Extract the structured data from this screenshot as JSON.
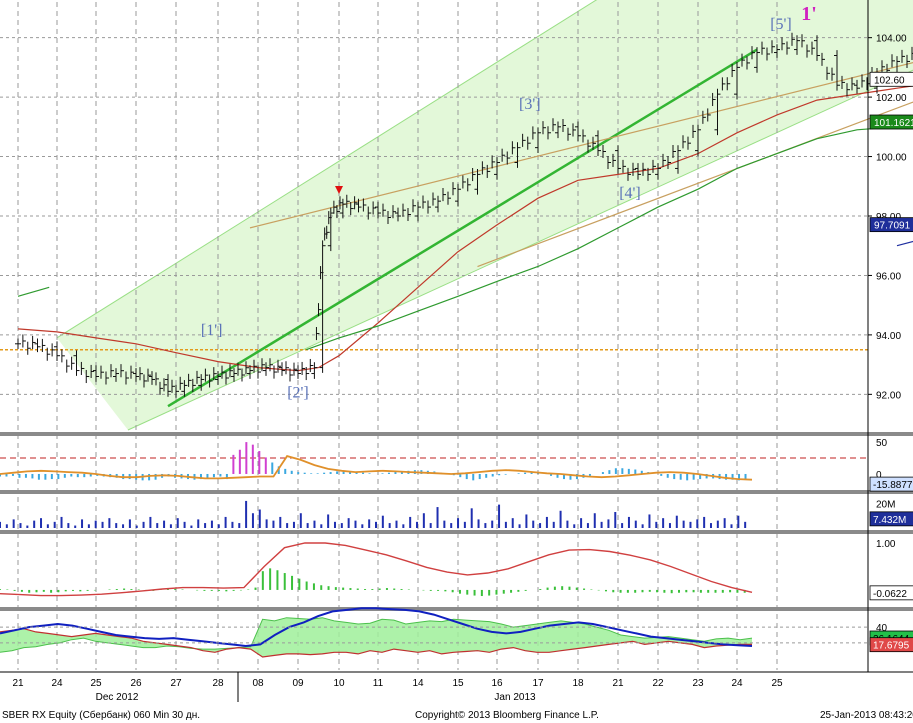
{
  "chart_data": {
    "type": "line",
    "instrument": "SBER RX Equity (Сбербанк) 060 Min 30 дн.",
    "copyright": "Copyright© 2013 Bloomberg Finance L.P.",
    "timestamp": "25-Jan-2013 08:43:20",
    "x_ticks": [
      "21",
      "24",
      "25",
      "26",
      "27",
      "28",
      "08",
      "09",
      "10",
      "11",
      "14",
      "15",
      "16",
      "17",
      "18",
      "21",
      "22",
      "23",
      "24",
      "25"
    ],
    "months": [
      "Dec 2012",
      "Jan 2013"
    ],
    "price_axis": {
      "ylim": [
        90.8,
        105.2
      ],
      "ticks": [
        "92.00",
        "94.00",
        "96.00",
        "98.00",
        "100.00",
        "102.00",
        "104.00"
      ]
    },
    "price_tags": [
      {
        "label": "102.60",
        "value": 102.6,
        "bg": "#ffffff",
        "fg": "#000000"
      },
      {
        "label": "101.1621",
        "value": 101.1621,
        "bg": "#1a8a1a",
        "fg": "#ffffff"
      },
      {
        "label": "97.7091",
        "value": 97.7091,
        "bg": "#1f2f9a",
        "fg": "#ffffff"
      }
    ],
    "support_line": 93.5,
    "annotations": [
      {
        "text": "[1']",
        "x": 4.85,
        "y": 94.0
      },
      {
        "text": "[2']",
        "x": 7.0,
        "y": 91.9
      },
      {
        "text": "[3']",
        "x": 12.8,
        "y": 101.6
      },
      {
        "text": "[4']",
        "x": 15.3,
        "y": 98.6
      },
      {
        "text": "[5']",
        "x": 19.1,
        "y": 104.3
      },
      {
        "text": "1'",
        "x": 19.8,
        "y": 104.6
      }
    ],
    "close_series": [
      {
        "x": 0,
        "y": 93.7
      },
      {
        "x": 0.5,
        "y": 93.6
      },
      {
        "x": 1.0,
        "y": 93.3
      },
      {
        "x": 1.5,
        "y": 92.8
      },
      {
        "x": 2.0,
        "y": 92.6
      },
      {
        "x": 2.5,
        "y": 92.7
      },
      {
        "x": 3.0,
        "y": 92.6
      },
      {
        "x": 3.4,
        "y": 92.5
      },
      {
        "x": 3.8,
        "y": 92.1
      },
      {
        "x": 4.2,
        "y": 92.3
      },
      {
        "x": 4.6,
        "y": 92.5
      },
      {
        "x": 5.0,
        "y": 92.6
      },
      {
        "x": 5.4,
        "y": 92.7
      },
      {
        "x": 5.8,
        "y": 92.8
      },
      {
        "x": 6.2,
        "y": 92.9
      },
      {
        "x": 6.6,
        "y": 92.8
      },
      {
        "x": 7.0,
        "y": 92.7
      },
      {
        "x": 7.4,
        "y": 92.9
      },
      {
        "x": 7.6,
        "y": 97.0
      },
      {
        "x": 7.8,
        "y": 98.1
      },
      {
        "x": 8.1,
        "y": 98.4
      },
      {
        "x": 8.5,
        "y": 98.3
      },
      {
        "x": 9.0,
        "y": 98.1
      },
      {
        "x": 9.5,
        "y": 98.0
      },
      {
        "x": 10.0,
        "y": 98.3
      },
      {
        "x": 10.5,
        "y": 98.5
      },
      {
        "x": 11.0,
        "y": 98.9
      },
      {
        "x": 11.5,
        "y": 99.4
      },
      {
        "x": 12.0,
        "y": 99.8
      },
      {
        "x": 12.5,
        "y": 100.3
      },
      {
        "x": 13.0,
        "y": 100.8
      },
      {
        "x": 13.5,
        "y": 101.0
      },
      {
        "x": 14.0,
        "y": 100.7
      },
      {
        "x": 14.5,
        "y": 100.2
      },
      {
        "x": 15.0,
        "y": 99.6
      },
      {
        "x": 15.5,
        "y": 99.4
      },
      {
        "x": 16.0,
        "y": 99.6
      },
      {
        "x": 16.5,
        "y": 100.2
      },
      {
        "x": 17.0,
        "y": 100.9
      },
      {
        "x": 17.5,
        "y": 102.1
      },
      {
        "x": 18.0,
        "y": 103.0
      },
      {
        "x": 18.5,
        "y": 103.5
      },
      {
        "x": 19.0,
        "y": 103.6
      },
      {
        "x": 19.5,
        "y": 103.9
      },
      {
        "x": 20.0,
        "y": 103.4
      },
      {
        "x": 20.5,
        "y": 102.4
      },
      {
        "x": 21.0,
        "y": 102.3
      },
      {
        "x": 21.5,
        "y": 102.8
      },
      {
        "x": 22.0,
        "y": 103.2
      },
      {
        "x": 22.5,
        "y": 103.4
      },
      {
        "x": 23.0,
        "y": 102.4
      },
      {
        "x": 23.5,
        "y": 102.2
      },
      {
        "x": 24.0,
        "y": 102.6
      }
    ],
    "ma_red": [
      {
        "x": 0,
        "y": 94.2
      },
      {
        "x": 1,
        "y": 94.1
      },
      {
        "x": 2,
        "y": 93.9
      },
      {
        "x": 3,
        "y": 93.7
      },
      {
        "x": 4,
        "y": 93.4
      },
      {
        "x": 5,
        "y": 93.1
      },
      {
        "x": 6,
        "y": 92.9
      },
      {
        "x": 7,
        "y": 92.8
      },
      {
        "x": 7.5,
        "y": 92.9
      },
      {
        "x": 8,
        "y": 93.3
      },
      {
        "x": 9,
        "y": 94.4
      },
      {
        "x": 10,
        "y": 95.6
      },
      {
        "x": 11,
        "y": 96.8
      },
      {
        "x": 12,
        "y": 97.7
      },
      {
        "x": 13,
        "y": 98.6
      },
      {
        "x": 14,
        "y": 99.2
      },
      {
        "x": 15,
        "y": 99.4
      },
      {
        "x": 16,
        "y": 99.6
      },
      {
        "x": 17,
        "y": 100.1
      },
      {
        "x": 18,
        "y": 100.8
      },
      {
        "x": 19,
        "y": 101.4
      },
      {
        "x": 20,
        "y": 101.9
      },
      {
        "x": 21,
        "y": 102.1
      },
      {
        "x": 22,
        "y": 102.3
      },
      {
        "x": 23,
        "y": 102.5
      },
      {
        "x": 24,
        "y": 102.6
      }
    ],
    "ma_green": [
      {
        "x": 0,
        "y": 95.3
      },
      {
        "x": 0.8,
        "y": 95.6
      },
      {
        "x": 7.2,
        "y": 93.5
      },
      {
        "x": 8,
        "y": 93.9
      },
      {
        "x": 9,
        "y": 94.3
      },
      {
        "x": 10,
        "y": 94.8
      },
      {
        "x": 11,
        "y": 95.3
      },
      {
        "x": 12,
        "y": 95.8
      },
      {
        "x": 13,
        "y": 96.3
      },
      {
        "x": 14,
        "y": 96.9
      },
      {
        "x": 15,
        "y": 97.6
      },
      {
        "x": 16,
        "y": 98.3
      },
      {
        "x": 17,
        "y": 98.9
      },
      {
        "x": 18,
        "y": 99.6
      },
      {
        "x": 19,
        "y": 100.1
      },
      {
        "x": 20,
        "y": 100.6
      },
      {
        "x": 21,
        "y": 100.9
      },
      {
        "x": 22,
        "y": 101.0
      },
      {
        "x": 23,
        "y": 101.1
      },
      {
        "x": 24,
        "y": 101.2
      }
    ],
    "ma_blue": [
      {
        "x": 22,
        "y": 97.0
      },
      {
        "x": 24,
        "y": 97.7
      }
    ],
    "trend_green": [
      {
        "x": 3.8,
        "y": 91.6
      },
      {
        "x": 18.5,
        "y": 103.6
      }
    ],
    "channel_upper": [
      {
        "x": 1.0,
        "y": 93.9
      },
      {
        "x": 19.5,
        "y": 109.5
      }
    ],
    "channel_lower": [
      {
        "x": 2.8,
        "y": 90.8
      },
      {
        "x": 24.5,
        "y": 104.2
      }
    ],
    "tan_upper": [
      {
        "x": 5.8,
        "y": 97.6
      },
      {
        "x": 25.5,
        "y": 104.2
      }
    ],
    "tan_lower": [
      {
        "x": 11.5,
        "y": 96.3
      },
      {
        "x": 24.5,
        "y": 102.9
      }
    ],
    "panels": [
      {
        "name": "oscillator",
        "ylim": [
          -22,
          58
        ],
        "ticks": [
          "50",
          "0"
        ],
        "dashed_level": 25,
        "tag": {
          "label": "-15.8877",
          "value": -15.8877,
          "bg": "#cfe0ff",
          "fg": "#000000"
        },
        "hist": [
          -4,
          -4,
          -3,
          -6,
          -6,
          -7,
          -9,
          -9,
          -8,
          -8,
          -6,
          -4,
          -5,
          -5,
          -4,
          -3,
          -4,
          -5,
          -6,
          -8,
          -8,
          -9,
          -10,
          -10,
          -9,
          -6,
          -4,
          -6,
          -7,
          -8,
          -9,
          -8,
          -7,
          -5,
          -4,
          -8,
          30,
          38,
          50,
          46,
          36,
          26,
          18,
          12,
          8,
          5,
          3,
          2,
          1,
          1,
          2,
          3,
          4,
          5,
          4,
          3,
          2,
          1,
          0,
          1,
          2,
          3,
          4,
          5,
          6,
          6,
          5,
          4,
          2,
          0,
          -2,
          -5,
          -8,
          -10,
          -8,
          -6,
          -4,
          -2,
          -1,
          0,
          1,
          2,
          3,
          2,
          0,
          -3,
          -6,
          -8,
          -9,
          -8,
          -6,
          -3,
          0,
          3,
          6,
          9,
          9,
          8,
          7,
          5,
          3,
          0,
          -3,
          -6,
          -8,
          -9,
          -10,
          -9,
          -8,
          -7,
          -7,
          -8,
          -9,
          -9,
          -10,
          -9
        ],
        "signal": [
          0,
          2,
          4,
          5,
          4,
          3,
          2,
          0,
          -3,
          -5,
          -5,
          -3,
          -2,
          -3,
          -5,
          -7,
          -7,
          -6,
          -5,
          -4,
          -4,
          28,
          22,
          14,
          8,
          5,
          3,
          4,
          5,
          4,
          3,
          2,
          1,
          0,
          1,
          3,
          5,
          6,
          5,
          3,
          1,
          0,
          -2,
          -4,
          -5,
          -4,
          -2,
          0,
          2,
          3,
          2,
          0,
          -3,
          -6,
          -8,
          -9
        ]
      },
      {
        "name": "volume",
        "ylim": [
          0,
          26
        ],
        "ticks": [
          "20M"
        ],
        "tag": {
          "label": "7.432M",
          "value": 7.432,
          "bg": "#1f2f9a",
          "fg": "#ffffff"
        },
        "vol": [
          5,
          3,
          7,
          4,
          2,
          6,
          8,
          3,
          5,
          9,
          4,
          2,
          7,
          3,
          6,
          5,
          8,
          4,
          3,
          7,
          2,
          5,
          9,
          4,
          6,
          3,
          8,
          5,
          2,
          7,
          4,
          6,
          3,
          9,
          5,
          4,
          22,
          12,
          15,
          7,
          6,
          9,
          4,
          5,
          12,
          4,
          6,
          3,
          11,
          5,
          4,
          8,
          6,
          3,
          7,
          5,
          10,
          4,
          6,
          3,
          9,
          5,
          12,
          4,
          17,
          6,
          4,
          8,
          5,
          16,
          7,
          4,
          6,
          19,
          5,
          8,
          3,
          11,
          6,
          4,
          9,
          5,
          14,
          6,
          3,
          8,
          4,
          12,
          5,
          7,
          13,
          4,
          9,
          6,
          3,
          11,
          5,
          8,
          4,
          10,
          6,
          5,
          7,
          9,
          4,
          6,
          8,
          3,
          10,
          5
        ]
      },
      {
        "name": "momentum",
        "ylim": [
          -0.3,
          1.15
        ],
        "ticks": [
          "1.00"
        ],
        "tag": {
          "label": "-0.0622",
          "value": -0.0622,
          "bg": "#ffffff",
          "fg": "#000000"
        },
        "hist": [
          0.02,
          0.01,
          -0.02,
          -0.04,
          -0.06,
          -0.05,
          -0.04,
          -0.06,
          -0.05,
          -0.03,
          -0.02,
          -0.03,
          -0.02,
          -0.01,
          0,
          0.01,
          0.02,
          0.03,
          0.02,
          0.01,
          -0.01,
          -0.02,
          0.02,
          0.03,
          0.02,
          0.01,
          0,
          -0.01,
          -0.02,
          -0.02,
          -0.02,
          -0.03,
          -0.02,
          -0.01,
          0.01,
          0.05,
          0.4,
          0.46,
          0.42,
          0.36,
          0.3,
          0.24,
          0.18,
          0.14,
          0.1,
          0.08,
          0.06,
          0.05,
          0.04,
          0.03,
          0.02,
          0.02,
          0.03,
          0.04,
          0.03,
          0.02,
          0.01,
          0,
          -0.01,
          -0.02,
          -0.02,
          -0.03,
          -0.05,
          -0.08,
          -0.1,
          -0.12,
          -0.13,
          -0.12,
          -0.1,
          -0.08,
          -0.06,
          -0.04,
          -0.02,
          0,
          0.02,
          0.05,
          0.07,
          0.08,
          0.07,
          0.05,
          0.03,
          0.01,
          -0.01,
          -0.03,
          -0.05,
          -0.06,
          -0.06,
          -0.06,
          -0.05,
          -0.04,
          -0.05,
          -0.06,
          -0.07,
          -0.06,
          -0.05,
          -0.05,
          -0.06,
          -0.06,
          -0.06,
          -0.06,
          -0.05,
          -0.06,
          -0.06
        ],
        "line": [
          -0.08,
          -0.1,
          -0.12,
          -0.12,
          -0.11,
          -0.09,
          -0.06,
          -0.02,
          0.02,
          0.05,
          0.05,
          0.04,
          0.05,
          0.5,
          0.9,
          1.0,
          1.0,
          0.95,
          0.85,
          0.75,
          0.62,
          0.48,
          0.38,
          0.32,
          0.36,
          0.45,
          0.6,
          0.75,
          0.85,
          0.86,
          0.82,
          0.74,
          0.64,
          0.5,
          0.34,
          0.18,
          0.05,
          -0.05
        ]
      },
      {
        "name": "dmi",
        "ylim": [
          -12,
          58
        ],
        "ticks": [
          "40",
          "20"
        ],
        "tag_top": {
          "label": "26.1644",
          "value": 26.1644,
          "bg": "#22c04a",
          "fg": "#000000"
        },
        "tag_low": {
          "label": "17.6795",
          "value": 17.6795,
          "bg": "#e04848",
          "fg": "#ffffff"
        },
        "di_plus": [
          8,
          10,
          14,
          15,
          18,
          20,
          24,
          26,
          22,
          20,
          18,
          16,
          14,
          14,
          16,
          15,
          13,
          12,
          12,
          13,
          14,
          15,
          50,
          48,
          52,
          51,
          50,
          52,
          48,
          46,
          44,
          45,
          50,
          49,
          44,
          46,
          48,
          47,
          50,
          49,
          48,
          47,
          44,
          40,
          42,
          44,
          46,
          48,
          46,
          44,
          40,
          36,
          30,
          28,
          26,
          27,
          28,
          26,
          24,
          22,
          25,
          26,
          24,
          26
        ],
        "di_minus": [
          34,
          36,
          38,
          34,
          32,
          30,
          28,
          30,
          32,
          30,
          28,
          26,
          22,
          20,
          18,
          16,
          14,
          10,
          8,
          12,
          14,
          12,
          2,
          4,
          6,
          6,
          5,
          6,
          8,
          8,
          6,
          10,
          8,
          12,
          10,
          8,
          10,
          6,
          8,
          9,
          10,
          8,
          12,
          14,
          10,
          8,
          8,
          10,
          12,
          14,
          16,
          18,
          20,
          22,
          18,
          20,
          22,
          20,
          18,
          14,
          16,
          17,
          18,
          18
        ],
        "adx": [
          32,
          36,
          40,
          42,
          44,
          42,
          38,
          34,
          30,
          28,
          26,
          25,
          26,
          24,
          22,
          20,
          18,
          16,
          18,
          30,
          40,
          46,
          54,
          60,
          62,
          64,
          64,
          63,
          62,
          60,
          56,
          50,
          44,
          38,
          34,
          32,
          34,
          38,
          42,
          44,
          46,
          44,
          40,
          36,
          32,
          28,
          26,
          24,
          22,
          20,
          18,
          17,
          16
        ]
      }
    ]
  }
}
